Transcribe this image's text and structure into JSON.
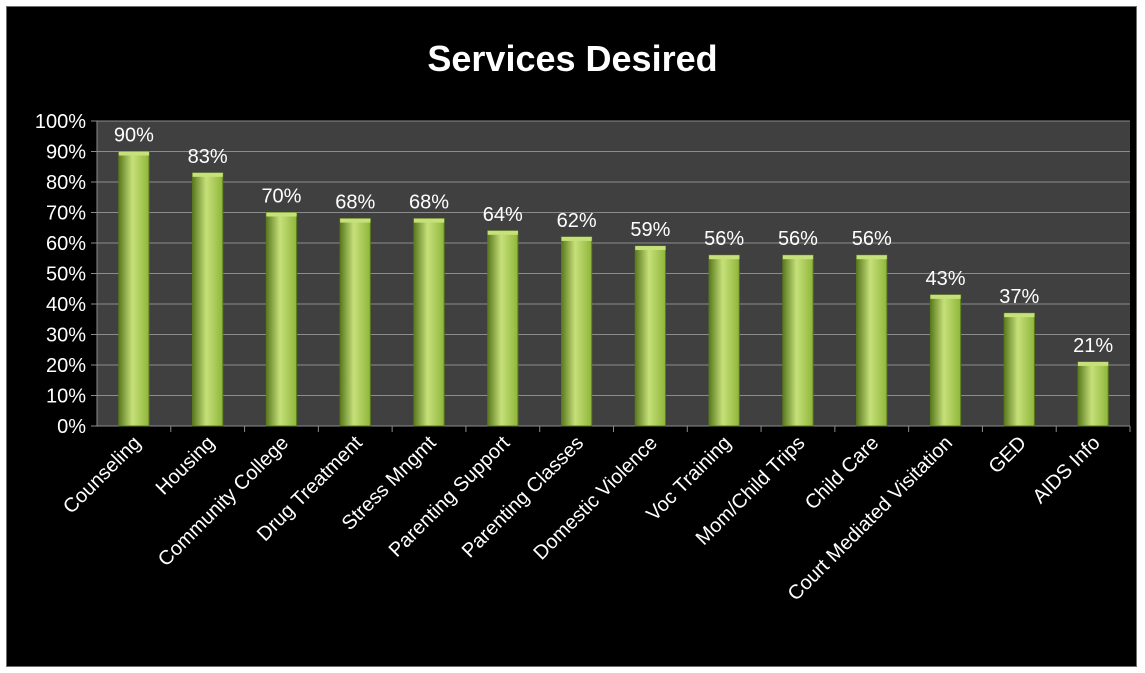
{
  "chart_data": {
    "type": "bar",
    "title": "Services Desired",
    "xlabel": "",
    "ylabel": "",
    "ylim": [
      0,
      100
    ],
    "yticks": [
      "0%",
      "10%",
      "20%",
      "30%",
      "40%",
      "50%",
      "60%",
      "70%",
      "80%",
      "90%",
      "100%"
    ],
    "grid": true,
    "legend": "none",
    "categories": [
      "Counseling",
      "Housing",
      "Community College",
      "Drug Treatment",
      "Stress Mngmt",
      "Parenting Support",
      "Parenting Classes",
      "Domestic Violence",
      "Voc Training",
      "Mom/Child Trips",
      "Child Care",
      "Court Mediated Visitation",
      "GED",
      "AIDS Info"
    ],
    "values": [
      90,
      83,
      70,
      68,
      68,
      64,
      62,
      59,
      56,
      56,
      56,
      43,
      37,
      21
    ],
    "data_labels": [
      "90%",
      "83%",
      "70%",
      "68%",
      "68%",
      "64%",
      "62%",
      "59%",
      "56%",
      "56%",
      "56%",
      "43%",
      "37%",
      "21%"
    ],
    "colors": {
      "background": "#000000",
      "plot_area": "#404040",
      "gridline": "#8c8c8c",
      "bar_light": "#c6e07a",
      "bar_mid": "#8fb63a",
      "bar_dark": "#5a7a1e",
      "text": "#ffffff"
    }
  }
}
